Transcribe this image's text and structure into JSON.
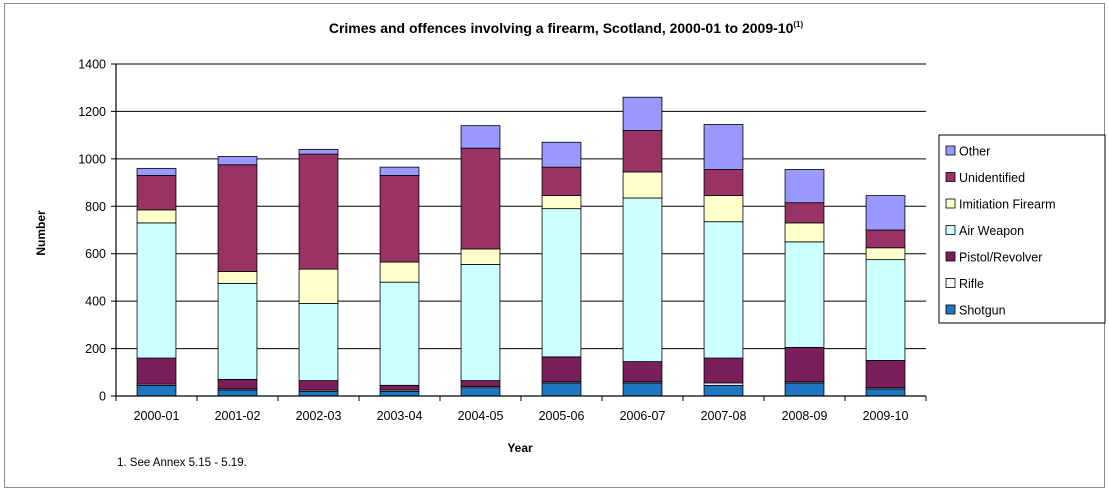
{
  "chart_data": {
    "type": "bar",
    "stacked": true,
    "title": "Crimes and offences involving a firearm, Scotland, 2000-01 to 2009-10",
    "title_superscript": "(1)",
    "xlabel": "Year",
    "ylabel": "Number",
    "ylim": [
      0,
      1400
    ],
    "yticks": [
      0,
      200,
      400,
      600,
      800,
      1000,
      1200,
      1400
    ],
    "grid": true,
    "legend_position": "right",
    "categories": [
      "2000-01",
      "2001-02",
      "2002-03",
      "2003-04",
      "2004-05",
      "2005-06",
      "2006-07",
      "2007-08",
      "2008-09",
      "2009-10"
    ],
    "series": [
      {
        "name": "Shotgun",
        "color": "#1f77c4",
        "values": [
          45,
          25,
          20,
          20,
          35,
          55,
          55,
          45,
          55,
          30
        ]
      },
      {
        "name": "Rifle",
        "color": "#ffffff",
        "values": [
          5,
          5,
          5,
          5,
          5,
          5,
          5,
          10,
          5,
          5
        ]
      },
      {
        "name": "Pistol/Revolver",
        "color": "#7b1f5c",
        "values": [
          110,
          40,
          40,
          20,
          25,
          105,
          85,
          105,
          145,
          115
        ]
      },
      {
        "name": "Air Weapon",
        "color": "#ccffff",
        "values": [
          570,
          405,
          325,
          435,
          490,
          625,
          690,
          575,
          445,
          425
        ]
      },
      {
        "name": "Imitiation Firearm",
        "color": "#ffffcc",
        "values": [
          55,
          50,
          145,
          85,
          65,
          55,
          110,
          110,
          80,
          50
        ]
      },
      {
        "name": "Unidentified",
        "color": "#993366",
        "values": [
          145,
          450,
          485,
          365,
          425,
          120,
          175,
          110,
          85,
          75
        ]
      },
      {
        "name": "Other",
        "color": "#9999ff",
        "values": [
          30,
          35,
          20,
          35,
          95,
          105,
          140,
          190,
          140,
          145
        ]
      }
    ]
  },
  "footnote": "1. See Annex 5.15 - 5.19."
}
